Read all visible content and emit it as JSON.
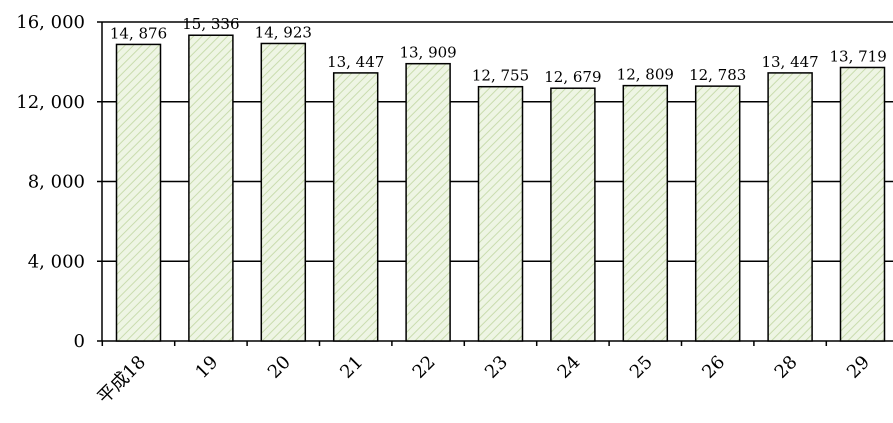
{
  "chart_data": {
    "type": "bar",
    "categories": [
      "平成18",
      "19",
      "20",
      "21",
      "22",
      "23",
      "24",
      "25",
      "26",
      "28",
      "29"
    ],
    "values": [
      14876,
      15336,
      14923,
      13447,
      13909,
      12755,
      12679,
      12809,
      12783,
      13447,
      13719
    ],
    "data_labels": [
      "14, 876",
      "15, 336",
      "14, 923",
      "13, 447",
      "13, 909",
      "12, 755",
      "12, 679",
      "12, 809",
      "12, 783",
      "13, 447",
      "13, 719"
    ],
    "y_ticks": [
      0,
      4000,
      8000,
      12000,
      16000
    ],
    "y_tick_labels": [
      "0",
      "4, 000",
      "8, 000",
      "12, 000",
      "16, 000"
    ],
    "ylim": [
      0,
      16000
    ],
    "grid": true,
    "bar_fill": "#eef5e4",
    "bar_hatch": "#c9dcae",
    "bar_stroke": "#000000"
  }
}
